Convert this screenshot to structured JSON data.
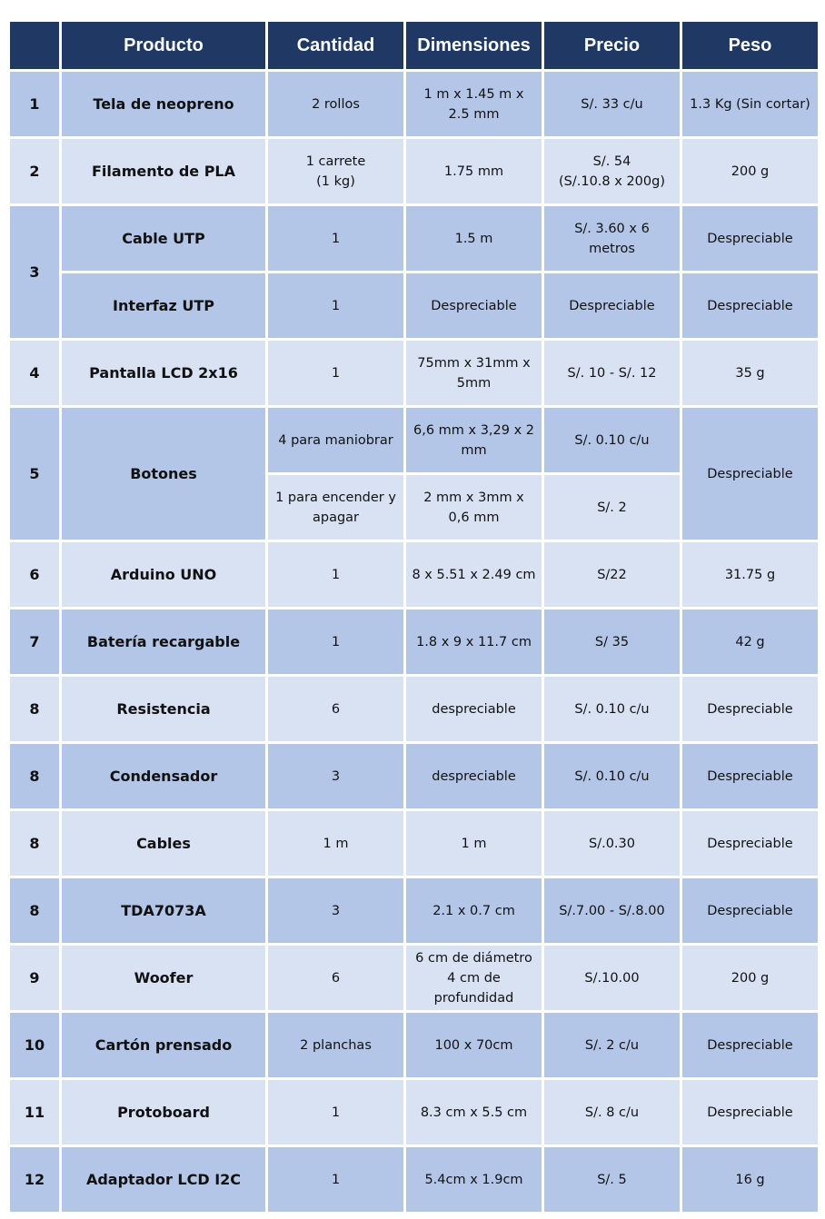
{
  "headers": [
    "",
    "Producto",
    "Cantidad",
    "Dimensiones",
    "Precio",
    "Peso"
  ],
  "rows": [
    {
      "num": "1",
      "producto": "Tela de neopreno",
      "cantidad": "2 rollos",
      "dimensiones": "1 m x 1.45 m x 2.5 mm",
      "precio": "S/. 33 c/u",
      "peso": "1.3 Kg (Sin cortar)"
    },
    {
      "num": "2",
      "producto": "Filamento de PLA",
      "cantidad": [
        "1 carrete",
        "(1 kg)"
      ],
      "dimensiones": "1.75 mm",
      "precio": [
        "S/. 54",
        "(S/.10.8 x 200g)"
      ],
      "peso": "200 g"
    },
    {
      "num": "3",
      "producto": "Cable UTP",
      "cantidad": "1",
      "dimensiones": "1.5 m",
      "precio": "S/. 3.60 x 6 metros",
      "peso": "Despreciable"
    },
    {
      "producto": "Interfaz UTP",
      "cantidad": "1",
      "dimensiones": "Despreciable",
      "precio": "Despreciable",
      "peso": "Despreciable"
    },
    {
      "num": "4",
      "producto": "Pantalla LCD 2x16",
      "cantidad": "1",
      "dimensiones": "75mm x 31mm x 5mm",
      "precio": "S/. 10 - S/. 12",
      "peso": "35 g"
    },
    {
      "num": "5",
      "producto": "Botones",
      "cantidad": "4 para maniobrar",
      "dimensiones": "6,6 mm x 3,29 x 2 mm",
      "precio": "S/. 0.10 c/u",
      "peso": "Despreciable"
    },
    {
      "cantidad": "1 para encender y apagar",
      "dimensiones": "2 mm x 3mm x 0,6 mm",
      "precio": "S/. 2"
    },
    {
      "num": "6",
      "producto": "Arduino UNO",
      "cantidad": "1",
      "dimensiones": "8 x 5.51 x 2.49 cm",
      "precio": "S/22",
      "peso": "31.75 g"
    },
    {
      "num": "7",
      "producto": "Batería recargable",
      "cantidad": "1",
      "dimensiones": "1.8 x 9 x 11.7 cm",
      "precio": "S/ 35",
      "peso": "42 g"
    },
    {
      "num": "8",
      "producto": "Resistencia",
      "cantidad": "6",
      "dimensiones": "despreciable",
      "precio": "S/. 0.10 c/u",
      "peso": "Despreciable"
    },
    {
      "num": "8",
      "producto": "Condensador",
      "cantidad": "3",
      "dimensiones": "despreciable",
      "precio": "S/. 0.10 c/u",
      "peso": "Despreciable"
    },
    {
      "num": "8",
      "producto": "Cables",
      "cantidad": "1 m",
      "dimensiones": "1 m",
      "precio": "S/.0.30",
      "peso": "Despreciable"
    },
    {
      "num": "8",
      "producto": "TDA7073A",
      "cantidad": "3",
      "dimensiones": "2.1 x 0.7 cm",
      "precio": "S/.7.00 - S/.8.00",
      "peso": "Despreciable"
    },
    {
      "num": "9",
      "producto": "Woofer",
      "cantidad": "6",
      "dimensiones": [
        "6 cm de diámetro",
        "4 cm de profundidad"
      ],
      "precio": "S/.10.00",
      "peso": "200 g"
    },
    {
      "num": "10",
      "producto": "Cartón prensado",
      "cantidad": "2 planchas",
      "dimensiones": "100 x 70cm",
      "precio": "S/. 2 c/u",
      "peso": "Despreciable"
    },
    {
      "num": "11",
      "producto": "Protoboard",
      "cantidad": "1",
      "dimensiones": "8.3 cm x 5.5 cm",
      "precio": "S/. 8 c/u",
      "peso": "Despreciable"
    },
    {
      "num": "12",
      "producto": "Adaptador LCD I2C",
      "cantidad": "1",
      "dimensiones": "5.4cm x 1.9cm",
      "precio": "S/. 5",
      "peso": "16 g"
    }
  ],
  "colors": {
    "header": "#1f3864",
    "row_dark": "#b4c6e7",
    "row_light": "#d9e2f3"
  }
}
